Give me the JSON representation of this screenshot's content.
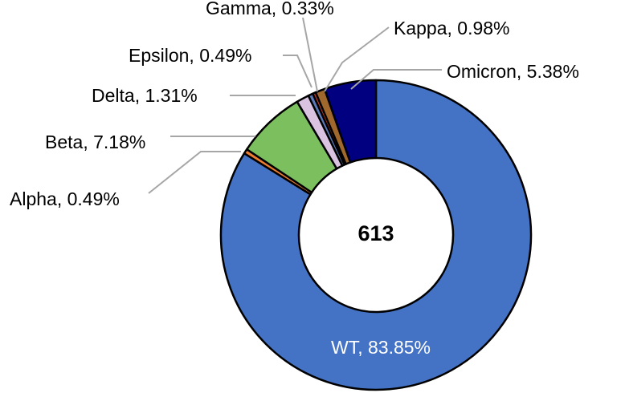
{
  "chart_data": {
    "type": "pie",
    "variant": "donut",
    "center_label": "613",
    "slices": [
      {
        "name": "WT",
        "value": 83.85,
        "label": "WT, 83.85%",
        "color": "#4472C4"
      },
      {
        "name": "Alpha",
        "value": 0.49,
        "label": "Alpha, 0.49%",
        "color": "#ED7D31"
      },
      {
        "name": "Beta",
        "value": 7.18,
        "label": "Beta, 7.18%",
        "color": "#7CBF5E"
      },
      {
        "name": "Delta",
        "value": 1.31,
        "label": "Delta, 1.31%",
        "color": "#D9C3E0"
      },
      {
        "name": "Epsilon",
        "value": 0.49,
        "label": "Epsilon, 0.49%",
        "color": "#5B7BB8"
      },
      {
        "name": "Gamma",
        "value": 0.33,
        "label": "Gamma, 0.33%",
        "color": "#C0392B"
      },
      {
        "name": "Kappa",
        "value": 0.98,
        "label": "Kappa, 0.98%",
        "color": "#A0682C"
      },
      {
        "name": "Omicron",
        "value": 5.38,
        "label": "Omicron, 5.38%",
        "color": "#000080"
      }
    ]
  }
}
